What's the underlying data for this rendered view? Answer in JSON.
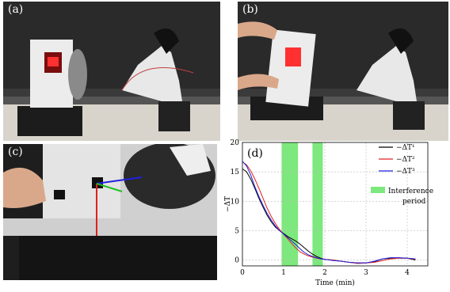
{
  "panels": {
    "a": {
      "label": "(a)"
    },
    "b": {
      "label": "(b)"
    },
    "c": {
      "label": "(c)"
    },
    "d": {
      "label": "(d)"
    }
  },
  "chart_data": {
    "type": "line",
    "xlabel": "Time (min)",
    "ylabel": "−ΔT",
    "xlim": [
      0,
      4.5
    ],
    "ylim": [
      -1,
      20
    ],
    "xticks": [
      "0",
      "1",
      "2",
      "3",
      "4"
    ],
    "yticks": [
      "0",
      "5",
      "10",
      "15",
      "20"
    ],
    "grid": true,
    "legend_position": "top-right",
    "interference_periods": [
      [
        0.95,
        1.35
      ],
      [
        1.7,
        1.95
      ]
    ],
    "interference_color": "#7de87d",
    "interference_label": "Interference",
    "interference_label2": "period",
    "series": [
      {
        "name": "−ΔT¹",
        "color": "#000000",
        "x": [
          0,
          0.1,
          0.2,
          0.3,
          0.4,
          0.5,
          0.6,
          0.7,
          0.8,
          0.9,
          1.0,
          1.1,
          1.2,
          1.3,
          1.4,
          1.5,
          1.6,
          1.7,
          1.8,
          1.9,
          2.0,
          2.2,
          2.4,
          2.6,
          2.8,
          3.0,
          3.2,
          3.4,
          3.6,
          3.8,
          4.0,
          4.2
        ],
        "y": [
          15.5,
          15.0,
          13.8,
          12.2,
          10.5,
          9.0,
          7.6,
          6.5,
          5.6,
          5.0,
          4.5,
          4.0,
          3.6,
          3.2,
          2.7,
          2.1,
          1.5,
          1.0,
          0.6,
          0.3,
          0.1,
          0.0,
          -0.2,
          -0.4,
          -0.5,
          -0.5,
          -0.3,
          0.2,
          0.3,
          0.3,
          0.3,
          0.0
        ]
      },
      {
        "name": "−ΔT²",
        "color": "#e02020",
        "x": [
          0,
          0.1,
          0.2,
          0.3,
          0.4,
          0.5,
          0.6,
          0.7,
          0.8,
          0.9,
          1.0,
          1.1,
          1.2,
          1.3,
          1.4,
          1.5,
          1.6,
          1.7,
          1.8,
          1.9,
          2.0,
          2.2,
          2.4,
          2.6,
          2.8,
          3.0,
          3.2,
          3.4,
          3.6,
          3.8,
          4.0,
          4.2
        ],
        "y": [
          16.7,
          16.2,
          15.2,
          13.8,
          12.2,
          10.5,
          8.8,
          7.4,
          6.2,
          5.2,
          4.4,
          3.6,
          2.8,
          2.0,
          1.4,
          1.0,
          0.7,
          0.5,
          0.3,
          0.2,
          0.1,
          0.0,
          -0.2,
          -0.4,
          -0.6,
          -0.5,
          -0.4,
          -0.1,
          0.2,
          0.3,
          0.3,
          0.1
        ]
      },
      {
        "name": "−ΔT³",
        "color": "#2020e0",
        "x": [
          0,
          0.1,
          0.2,
          0.3,
          0.4,
          0.5,
          0.6,
          0.7,
          0.8,
          0.9,
          1.0,
          1.1,
          1.2,
          1.3,
          1.4,
          1.5,
          1.6,
          1.7,
          1.8,
          1.9,
          2.0,
          2.2,
          2.4,
          2.6,
          2.8,
          3.0,
          3.2,
          3.4,
          3.6,
          3.8,
          4.0,
          4.2
        ],
        "y": [
          16.8,
          16.0,
          14.5,
          12.5,
          10.8,
          9.3,
          7.9,
          6.8,
          5.8,
          5.0,
          4.4,
          3.8,
          3.2,
          2.6,
          1.9,
          1.3,
          0.9,
          0.6,
          0.4,
          0.2,
          0.1,
          -0.1,
          -0.2,
          -0.4,
          -0.5,
          -0.5,
          -0.2,
          0.2,
          0.4,
          0.4,
          0.3,
          0.2
        ]
      }
    ]
  }
}
